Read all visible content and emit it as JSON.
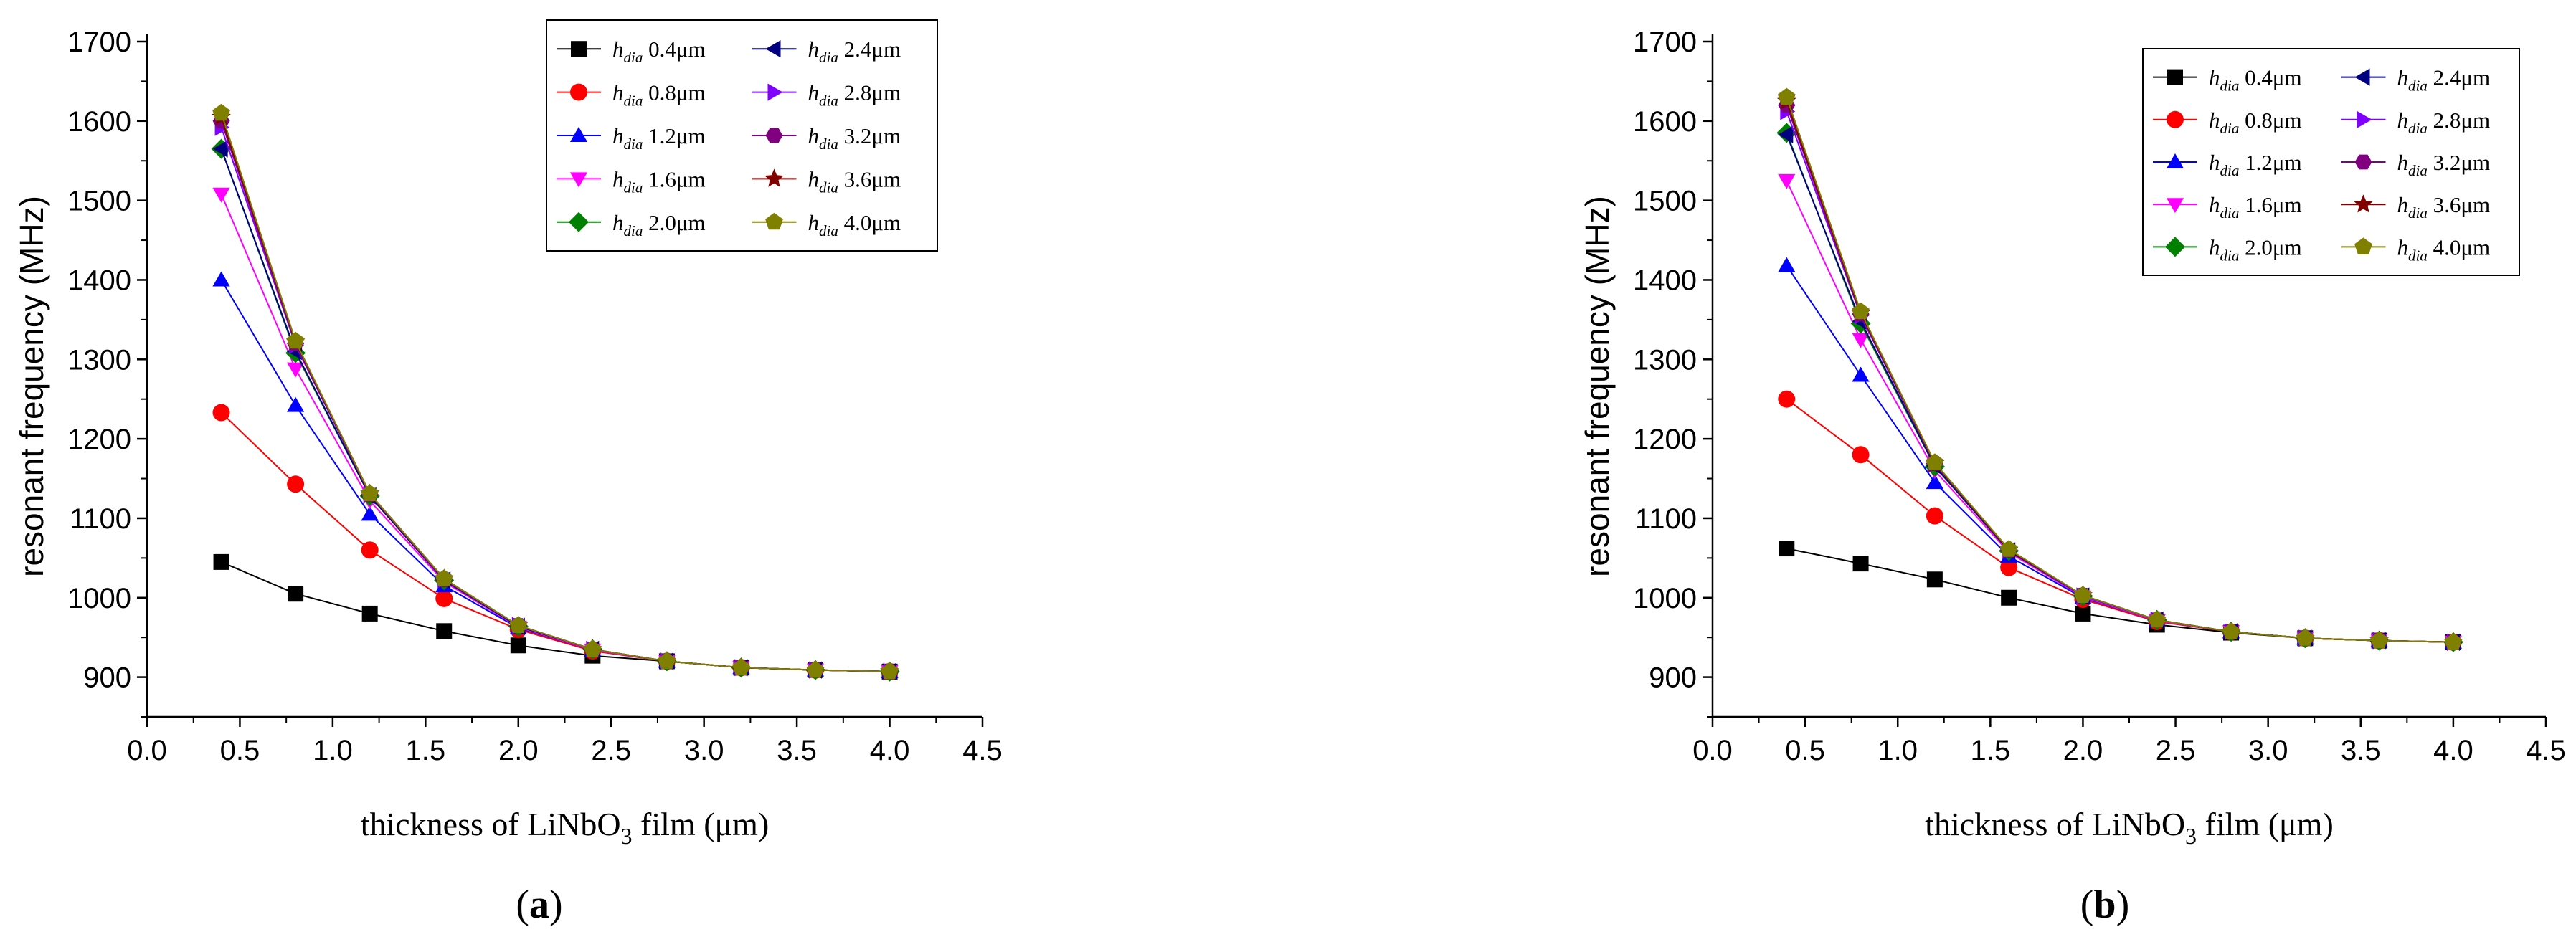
{
  "chart_data": [
    {
      "type": "line",
      "panel_label": "a",
      "ylabel": "resonant frequency (MHz)",
      "xlabel": {
        "pre": "thickness of LiNbO",
        "sub": "3",
        "post": " film (μm)"
      },
      "xlim": [
        0,
        4.5
      ],
      "ylim": [
        850,
        1700
      ],
      "xticks": [
        "0.0",
        "0.5",
        "1.0",
        "1.5",
        "2.0",
        "2.5",
        "3.0",
        "3.5",
        "4.0",
        "4.5"
      ],
      "yticks": [
        "900",
        "1000",
        "1100",
        "1200",
        "1300",
        "1400",
        "1500",
        "1600",
        "1700"
      ],
      "legend_position": "top-right",
      "x": [
        0.4,
        0.8,
        1.2,
        1.6,
        2.0,
        2.4,
        2.8,
        3.2,
        3.6,
        4.0
      ],
      "series": [
        {
          "name": "0.4μm",
          "color": "#000000",
          "marker": "square",
          "values": [
            1045,
            1005,
            980,
            958,
            940,
            927,
            920,
            912,
            909,
            907
          ]
        },
        {
          "name": "0.8μm",
          "color": "#ff0000",
          "marker": "circle",
          "values": [
            1233,
            1143,
            1060,
            999,
            960,
            933,
            920,
            912,
            909,
            907
          ]
        },
        {
          "name": "1.2μm",
          "color": "#0000ff",
          "marker": "triangle-up",
          "values": [
            1400,
            1242,
            1105,
            1015,
            962,
            934,
            920,
            912,
            909,
            907
          ]
        },
        {
          "name": "1.6μm",
          "color": "#ff00ff",
          "marker": "triangle-down",
          "values": [
            1508,
            1288,
            1122,
            1020,
            963,
            934,
            920,
            912,
            909,
            907
          ]
        },
        {
          "name": "2.0μm",
          "color": "#008000",
          "marker": "diamond",
          "values": [
            1565,
            1308,
            1128,
            1022,
            964,
            935,
            920,
            912,
            909,
            907
          ]
        },
        {
          "name": "2.4μm",
          "color": "#000080",
          "marker": "triangle-left",
          "values": [
            1565,
            1310,
            1128,
            1022,
            964,
            935,
            920,
            912,
            909,
            907
          ]
        },
        {
          "name": "2.8μm",
          "color": "#8000ff",
          "marker": "triangle-right",
          "values": [
            1592,
            1318,
            1130,
            1023,
            965,
            935,
            920,
            912,
            909,
            907
          ]
        },
        {
          "name": "3.2μm",
          "color": "#800080",
          "marker": "hexagon",
          "values": [
            1600,
            1320,
            1130,
            1023,
            965,
            935,
            920,
            912,
            909,
            907
          ]
        },
        {
          "name": "3.6μm",
          "color": "#800000",
          "marker": "star",
          "values": [
            1605,
            1322,
            1131,
            1024,
            965,
            935,
            920,
            912,
            909,
            907
          ]
        },
        {
          "name": "4.0μm",
          "color": "#808000",
          "marker": "pentagon",
          "values": [
            1610,
            1323,
            1131,
            1024,
            965,
            935,
            920,
            912,
            909,
            907
          ]
        }
      ]
    },
    {
      "type": "line",
      "panel_label": "b",
      "ylabel": "resonant frequency (MHz)",
      "xlabel": {
        "pre": "thickness of LiNbO",
        "sub": "3",
        "post": " film (μm)"
      },
      "xlim": [
        0,
        4.5
      ],
      "ylim": [
        850,
        1700
      ],
      "xticks": [
        "0.0",
        "0.5",
        "1.0",
        "1.5",
        "2.0",
        "2.5",
        "3.0",
        "3.5",
        "4.0",
        "4.5"
      ],
      "yticks": [
        "900",
        "1000",
        "1100",
        "1200",
        "1300",
        "1400",
        "1500",
        "1600",
        "1700"
      ],
      "legend_position": "top-right",
      "x": [
        0.4,
        0.8,
        1.2,
        1.6,
        2.0,
        2.4,
        2.8,
        3.2,
        3.6,
        4.0
      ],
      "series": [
        {
          "name": "0.4μm",
          "color": "#000000",
          "marker": "square",
          "values": [
            1062,
            1043,
            1023,
            1000,
            980,
            966,
            956,
            949,
            946,
            944
          ]
        },
        {
          "name": "0.8μm",
          "color": "#ff0000",
          "marker": "circle",
          "values": [
            1250,
            1180,
            1103,
            1038,
            998,
            970,
            957,
            949,
            946,
            944
          ]
        },
        {
          "name": "1.2μm",
          "color": "#0000ff",
          "marker": "triangle-up",
          "values": [
            1418,
            1280,
            1145,
            1052,
            1000,
            971,
            957,
            949,
            946,
            944
          ]
        },
        {
          "name": "1.6μm",
          "color": "#ff00ff",
          "marker": "triangle-down",
          "values": [
            1525,
            1325,
            1160,
            1057,
            1001,
            971,
            957,
            949,
            946,
            944
          ]
        },
        {
          "name": "2.0μm",
          "color": "#008000",
          "marker": "diamond",
          "values": [
            1585,
            1345,
            1165,
            1059,
            1002,
            972,
            957,
            949,
            946,
            944
          ]
        },
        {
          "name": "2.4μm",
          "color": "#000080",
          "marker": "triangle-left",
          "values": [
            1583,
            1348,
            1166,
            1059,
            1002,
            972,
            957,
            949,
            946,
            944
          ]
        },
        {
          "name": "2.8μm",
          "color": "#8000ff",
          "marker": "triangle-right",
          "values": [
            1612,
            1355,
            1168,
            1060,
            1002,
            972,
            957,
            949,
            946,
            944
          ]
        },
        {
          "name": "3.2μm",
          "color": "#800080",
          "marker": "hexagon",
          "values": [
            1620,
            1357,
            1169,
            1060,
            1003,
            972,
            957,
            949,
            946,
            944
          ]
        },
        {
          "name": "3.6μm",
          "color": "#800000",
          "marker": "star",
          "values": [
            1625,
            1358,
            1169,
            1060,
            1003,
            972,
            957,
            949,
            946,
            944
          ]
        },
        {
          "name": "4.0μm",
          "color": "#808000",
          "marker": "pentagon",
          "values": [
            1630,
            1360,
            1170,
            1061,
            1003,
            972,
            957,
            949,
            946,
            944
          ]
        }
      ]
    }
  ]
}
